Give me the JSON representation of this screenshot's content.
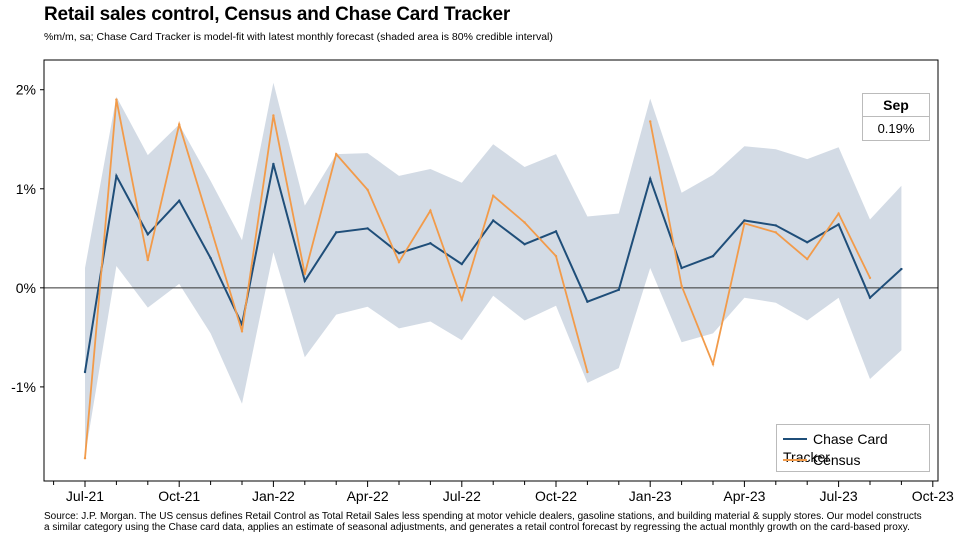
{
  "chart_data": {
    "type": "line",
    "title": "Retail sales control, Census and Chase Card Tracker",
    "subtitle": "%m/m, sa; Chase Card Tracker is model-fit with latest monthly forecast (shaded area is 80% credible interval)",
    "xlabel": "",
    "ylabel": "",
    "ylim": [
      -1.95,
      2.3
    ],
    "y_ticks": [
      2,
      1,
      0,
      -1
    ],
    "y_tick_labels": [
      "2%",
      "1%",
      "0%",
      "-1%"
    ],
    "x_tick_labels": [
      "Jul-21",
      "Oct-21",
      "Jan-22",
      "Apr-22",
      "Jul-22",
      "Oct-22",
      "Jan-23",
      "Apr-23",
      "Jul-23",
      "Oct-23"
    ],
    "months": [
      "Jul-21",
      "Aug-21",
      "Sep-21",
      "Oct-21",
      "Nov-21",
      "Dec-21",
      "Jan-22",
      "Feb-22",
      "Mar-22",
      "Apr-22",
      "May-22",
      "Jun-22",
      "Jul-22",
      "Aug-22",
      "Sep-22",
      "Oct-22",
      "Nov-22",
      "Dec-22",
      "Jan-23",
      "Feb-23",
      "Mar-23",
      "Apr-23",
      "May-23",
      "Jun-23",
      "Jul-23",
      "Aug-23",
      "Sep-23"
    ],
    "legend_position": "bottom-right",
    "series": [
      {
        "name": "Chase Card Tracker",
        "color": "#1f4e79",
        "values": [
          -0.85,
          1.13,
          0.54,
          0.88,
          0.3,
          -0.37,
          1.25,
          0.07,
          0.56,
          0.6,
          0.35,
          0.45,
          0.24,
          0.68,
          0.44,
          0.57,
          -0.14,
          -0.02,
          1.1,
          0.2,
          0.32,
          0.68,
          0.63,
          0.46,
          0.64,
          -0.1,
          0.19
        ]
      },
      {
        "name": "Census",
        "color": "#f29b4a",
        "values": [
          -1.72,
          1.9,
          0.28,
          1.65,
          0.61,
          -0.44,
          1.74,
          0.14,
          1.35,
          0.99,
          0.26,
          0.78,
          -0.12,
          0.93,
          0.66,
          0.32,
          -0.85,
          null,
          1.68,
          0.02,
          -0.77,
          0.65,
          0.56,
          0.29,
          0.75,
          0.1,
          null
        ]
      }
    ],
    "band": {
      "name": "80% credible interval",
      "color": "#d3dbe5",
      "upper": [
        0.2,
        1.93,
        1.34,
        1.65,
        1.08,
        0.48,
        2.07,
        0.83,
        1.35,
        1.36,
        1.13,
        1.2,
        1.06,
        1.45,
        1.22,
        1.35,
        0.72,
        0.75,
        1.91,
        0.96,
        1.14,
        1.43,
        1.4,
        1.3,
        1.42,
        0.69,
        1.03
      ],
      "lower": [
        -1.7,
        0.22,
        -0.2,
        0.04,
        -0.46,
        -1.17,
        0.36,
        -0.7,
        -0.27,
        -0.19,
        -0.41,
        -0.34,
        -0.53,
        -0.08,
        -0.33,
        -0.18,
        -0.96,
        -0.81,
        0.2,
        -0.55,
        -0.46,
        -0.1,
        -0.15,
        -0.33,
        -0.1,
        -0.92,
        -0.63
      ]
    },
    "latest_callout": {
      "label": "Sep",
      "value": "0.19%"
    }
  },
  "source_lines": [
    "Source: J.P. Morgan. The US census defines Retail Control as Total Retail Sales less spending at motor vehicle dealers, gasoline stations, and building material & supply stores. Our model constructs",
    " a similar category using the Chase card data, applies an estimate of seasonal adjustments, and generates a retail control forecast by regressing the actual monthly growth on the card-based proxy."
  ]
}
